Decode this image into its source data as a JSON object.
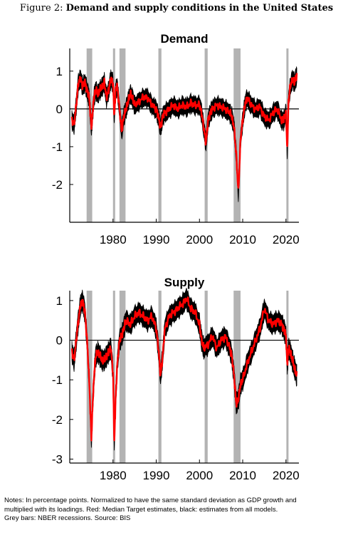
{
  "figure": {
    "label": "Figure 2:",
    "title": "Demand and supply conditions in the United States"
  },
  "notes": [
    "Notes: In percentage points. Normalized to have the same standard deviation as GDP growth and",
    "multiplied with its loadings. Red: Median Target estimates, black: estimates from all models.",
    "Grey bars: NBER recessions. Source: BIS"
  ],
  "colors": {
    "median": "#ff0000",
    "models": "#000000",
    "recession": "#b3b3b3"
  },
  "chart_data": [
    {
      "type": "line",
      "title": "Demand",
      "xlim": [
        1970,
        2023
      ],
      "ylim": [
        -3,
        1.6
      ],
      "xticks": [
        1980,
        1990,
        2000,
        2010,
        2020
      ],
      "yticks": [
        -2,
        -1,
        0,
        1
      ],
      "recessions": [
        [
          1973.9,
          1975.2
        ],
        [
          1980.0,
          1980.5
        ],
        [
          1981.5,
          1982.9
        ],
        [
          1990.5,
          1991.2
        ],
        [
          2001.2,
          2001.9
        ],
        [
          2007.9,
          2009.5
        ],
        [
          2020.1,
          2020.4
        ]
      ],
      "series": [
        {
          "color": "#ff0000",
          "x": [
            1970.5,
            1971,
            1971.5,
            1972,
            1972.5,
            1973,
            1973.5,
            1974,
            1974.5,
            1975,
            1975.3,
            1975.6,
            1976,
            1976.5,
            1977,
            1977.5,
            1978,
            1978.5,
            1979,
            1979.5,
            1980,
            1980.3,
            1980.6,
            1981,
            1981.5,
            1982,
            1982.5,
            1983,
            1983.5,
            1984,
            1984.5,
            1985,
            1986,
            1987,
            1988,
            1989,
            1990,
            1990.5,
            1991,
            1991.5,
            1992,
            1993,
            1994,
            1995,
            1996,
            1997,
            1998,
            1999,
            2000,
            2000.5,
            2001,
            2001.5,
            2002,
            2002.5,
            2003,
            2004,
            2005,
            2006,
            2007,
            2007.5,
            2008,
            2008.5,
            2009,
            2009.5,
            2010,
            2010.5,
            2011,
            2012,
            2013,
            2014,
            2015,
            2016,
            2017,
            2018,
            2019,
            2019.5,
            2020,
            2020.3,
            2020.6,
            2021,
            2021.5,
            2022,
            2022.5
          ],
          "y": [
            -0.3,
            -0.4,
            0.1,
            0.7,
            0.8,
            0.6,
            0.7,
            0.5,
            0.3,
            -0.5,
            -0.1,
            0.3,
            0.5,
            0.4,
            0.5,
            0.6,
            0.7,
            0.3,
            0.5,
            0.8,
            0.7,
            -0.2,
            0.5,
            0.6,
            0.0,
            -0.6,
            -0.2,
            0.0,
            0.2,
            0.4,
            0.3,
            0.1,
            0.2,
            0.3,
            0.3,
            0.1,
            0.0,
            -0.2,
            -0.5,
            -0.2,
            -0.1,
            0.0,
            0.1,
            0.0,
            0.1,
            0.05,
            0.15,
            0.1,
            0.1,
            -0.1,
            -0.5,
            -0.9,
            -0.3,
            -0.1,
            0.0,
            0.1,
            0.05,
            0.0,
            -0.1,
            -0.2,
            -0.5,
            -1.2,
            -2.2,
            -0.8,
            -0.3,
            0.1,
            0.3,
            0.1,
            0.0,
            0.05,
            -0.2,
            -0.3,
            -0.1,
            0.0,
            -0.3,
            -0.3,
            -0.1,
            -1.1,
            0.2,
            0.6,
            0.8,
            0.7,
            0.9
          ]
        }
      ]
    },
    {
      "type": "line",
      "title": "Supply",
      "xlim": [
        1970,
        2023
      ],
      "ylim": [
        -3.1,
        1.25
      ],
      "xticks": [
        1980,
        1990,
        2000,
        2010,
        2020
      ],
      "yticks": [
        -3,
        -2,
        -1,
        0,
        1
      ],
      "recessions": [
        [
          1973.9,
          1975.2
        ],
        [
          1980.0,
          1980.5
        ],
        [
          1981.5,
          1982.9
        ],
        [
          1990.5,
          1991.2
        ],
        [
          2001.2,
          2001.9
        ],
        [
          2007.9,
          2009.5
        ],
        [
          2020.1,
          2020.4
        ]
      ],
      "series": [
        {
          "color": "#ff0000",
          "x": [
            1970.5,
            1971,
            1971.5,
            1972,
            1972.5,
            1973,
            1973.5,
            1974,
            1974.5,
            1975,
            1975.3,
            1975.7,
            1976,
            1976.5,
            1977,
            1977.5,
            1978,
            1978.5,
            1979,
            1979.5,
            1980,
            1980.3,
            1980.6,
            1981,
            1981.5,
            1982,
            1982.5,
            1983,
            1984,
            1985,
            1986,
            1987,
            1988,
            1989,
            1990,
            1990.5,
            1991,
            1991.5,
            1992,
            1993,
            1994,
            1995,
            1996,
            1997,
            1998,
            1999,
            2000,
            2000.5,
            2001,
            2002,
            2003,
            2004,
            2005,
            2006,
            2007,
            2007.5,
            2008,
            2008.5,
            2009,
            2009.5,
            2010,
            2011,
            2012,
            2013,
            2014,
            2015,
            2016,
            2017,
            2018,
            2019,
            2019.5,
            2020,
            2020.3,
            2020.6,
            2021,
            2021.5,
            2022,
            2022.5
          ],
          "y": [
            -0.3,
            -0.5,
            0.0,
            0.5,
            0.9,
            1.0,
            0.7,
            0.0,
            -1.0,
            -2.5,
            -1.6,
            -0.8,
            -0.4,
            -0.3,
            -0.4,
            -0.5,
            -0.5,
            -0.4,
            -0.3,
            -0.2,
            -0.8,
            -2.6,
            -1.5,
            -0.6,
            0.0,
            0.1,
            0.3,
            0.5,
            0.4,
            0.6,
            0.7,
            0.6,
            0.5,
            0.6,
            0.3,
            -0.2,
            -0.9,
            -0.4,
            0.3,
            0.6,
            0.7,
            0.8,
            0.9,
            1.05,
            0.8,
            0.7,
            0.4,
            0.0,
            -0.2,
            -0.1,
            0.1,
            -0.2,
            0.0,
            0.1,
            -0.2,
            -0.4,
            -0.9,
            -1.6,
            -1.5,
            -1.1,
            -1.0,
            -0.6,
            -0.3,
            0.0,
            0.3,
            0.8,
            0.5,
            0.4,
            0.5,
            0.4,
            0.3,
            0.1,
            -0.6,
            -0.2,
            -0.3,
            -0.5,
            -0.7,
            -0.9
          ]
        }
      ]
    }
  ]
}
